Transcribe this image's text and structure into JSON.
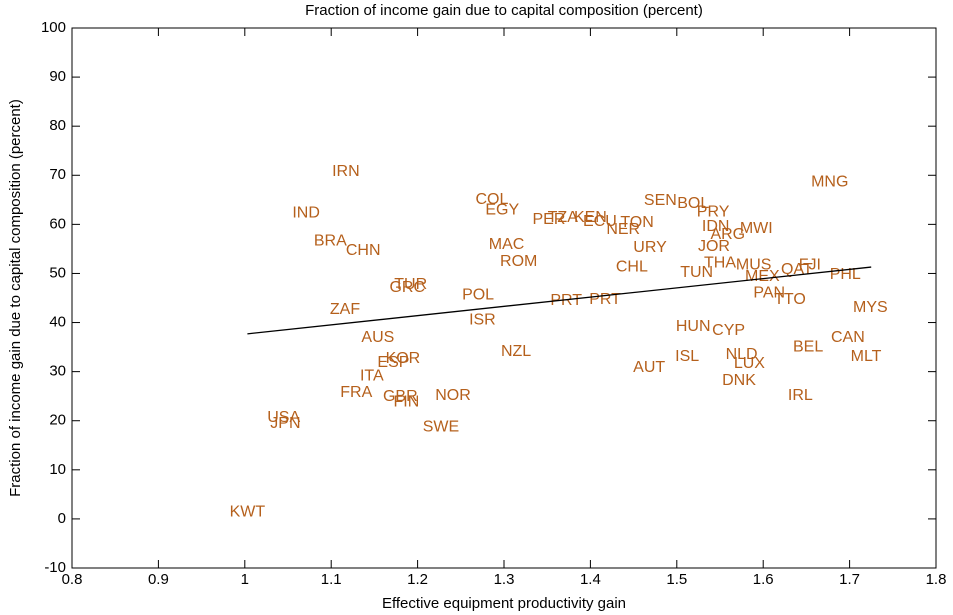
{
  "chart_data": {
    "type": "scatter",
    "title": "Fraction of income gain due to capital composition (percent)",
    "xlabel": "Effective equipment productivity gain",
    "ylabel": "Fraction of income gain due to capital composition (percent)",
    "color": "#b5601c",
    "labels": [
      "IRN",
      "IND",
      "BRA",
      "CHN",
      "ZAF",
      "AUS",
      "KOR",
      "ESP",
      "ITA",
      "FRA",
      "GBR",
      "FIN",
      "NOR",
      "SWE",
      "USA",
      "JPN",
      "KWT",
      "GRC",
      "TUR",
      "POL",
      "ISR",
      "NZL",
      "MAC",
      "ROM",
      "COL",
      "EGY",
      "PER",
      "TZA",
      "KEN",
      "ECU",
      "TON",
      "NER",
      "URY",
      "CHL",
      "PRT",
      "PRT",
      "SEN",
      "BOL",
      "PRY",
      "IDN",
      "MWI",
      "ARG",
      "JOR",
      "THA",
      "MUS",
      "TUN",
      "MEX",
      "QAT",
      "FJI",
      "PHL",
      "MNG",
      "PAN",
      "TTO",
      "MYS",
      "CAN",
      "BEL",
      "MLT",
      "HUN",
      "CYP",
      "NLD",
      "LUX",
      "DNK",
      "ISL",
      "AUT",
      "IRL"
    ],
    "x": [
      1.117,
      1.071,
      1.099,
      1.137,
      1.116,
      1.154,
      1.183,
      1.172,
      1.147,
      1.129,
      1.18,
      1.187,
      1.241,
      1.227,
      1.045,
      1.047,
      1.003,
      1.188,
      1.192,
      1.27,
      1.275,
      1.314,
      1.303,
      1.317,
      1.286,
      1.298,
      1.352,
      1.368,
      1.4,
      1.411,
      1.454,
      1.438,
      1.469,
      1.448,
      1.372,
      1.417,
      1.481,
      1.519,
      1.542,
      1.545,
      1.592,
      1.559,
      1.543,
      1.55,
      1.589,
      1.523,
      1.599,
      1.639,
      1.654,
      1.695,
      1.677,
      1.607,
      1.631,
      1.724,
      1.698,
      1.652,
      1.719,
      1.519,
      1.56,
      1.575,
      1.584,
      1.572,
      1.512,
      1.468,
      1.643
    ],
    "y": [
      70.7,
      62.3,
      56.6,
      54.6,
      42.6,
      36.9,
      32.6,
      31.8,
      29.1,
      25.7,
      24.9,
      23.8,
      25.1,
      18.7,
      20.6,
      19.4,
      1.4,
      47.1,
      47.7,
      45.6,
      40.5,
      34.0,
      55.8,
      52.4,
      65.0,
      62.9,
      60.9,
      61.3,
      61.3,
      60.5,
      60.3,
      58.9,
      55.2,
      51.3,
      44.4,
      44.6,
      64.8,
      64.2,
      62.5,
      59.5,
      59.1,
      57.9,
      55.4,
      52.1,
      51.7,
      50.1,
      49.3,
      50.7,
      51.7,
      49.7,
      68.6,
      46.0,
      44.6,
      43.0,
      36.9,
      35.0,
      33.0,
      39.1,
      38.3,
      33.4,
      31.6,
      28.1,
      33.0,
      30.8,
      25.1
    ],
    "fit": {
      "x": [
        1.003,
        1.725
      ],
      "y": [
        37.7,
        51.3
      ]
    },
    "xlim": [
      0.8,
      1.8
    ],
    "xticks": [
      0.8,
      0.9,
      1,
      1.1,
      1.2,
      1.3,
      1.4,
      1.5,
      1.6,
      1.7,
      1.8
    ],
    "ylim": [
      -10,
      100
    ],
    "yticks": [
      -10,
      0,
      10,
      20,
      30,
      40,
      50,
      60,
      70,
      80,
      90,
      100
    ]
  }
}
